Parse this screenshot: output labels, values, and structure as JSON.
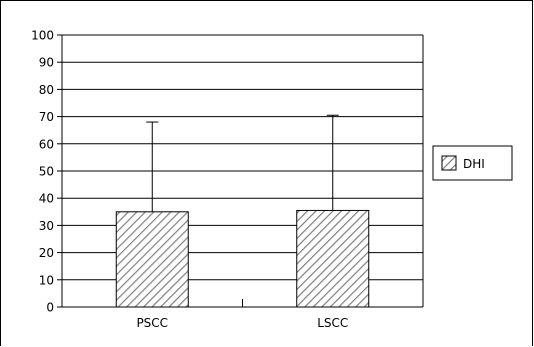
{
  "chart_data": {
    "type": "bar",
    "categories": [
      "PSCC",
      "LSCC"
    ],
    "series": [
      {
        "name": "DHI",
        "values": [
          35,
          35.5
        ],
        "error_upper": [
          68,
          70.5
        ]
      }
    ],
    "title": "",
    "xlabel": "",
    "ylabel": "",
    "ylim": [
      0,
      100
    ],
    "yticks": [
      "0",
      "10",
      "20",
      "30",
      "40",
      "50",
      "60",
      "70",
      "80",
      "90",
      "100"
    ],
    "grid": true,
    "legend_position": "right",
    "fill_pattern": "diagonal-hatch",
    "colors": {
      "bar_fill": "#ffffff",
      "hatch": "#7f7f7f",
      "grid": "#000000",
      "axis": "#000000"
    }
  }
}
